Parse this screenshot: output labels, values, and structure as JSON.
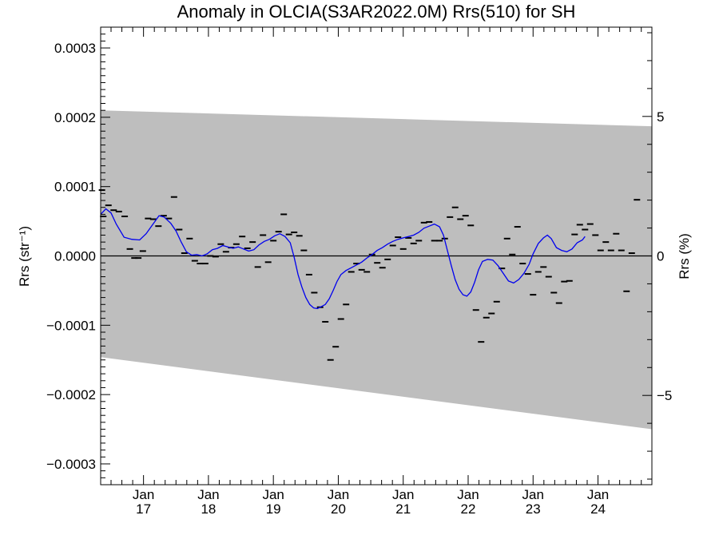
{
  "chart_data": {
    "type": "line",
    "title": "Anomaly in OLCIA(S3AR2022.0M) Rrs(510) for SH",
    "ylabel_left": "Rrs (str⁻¹)",
    "ylabel_right": "Rrs (%)",
    "x_tick_labels": [
      {
        "top": "Jan",
        "bottom": "17",
        "year": 2017
      },
      {
        "top": "Jan",
        "bottom": "18",
        "year": 2018
      },
      {
        "top": "Jan",
        "bottom": "19",
        "year": 2019
      },
      {
        "top": "Jan",
        "bottom": "20",
        "year": 2020
      },
      {
        "top": "Jan",
        "bottom": "21",
        "year": 2021
      },
      {
        "top": "Jan",
        "bottom": "22",
        "year": 2022
      },
      {
        "top": "Jan",
        "bottom": "23",
        "year": 2023
      },
      {
        "top": "Jan",
        "bottom": "24",
        "year": 2024
      }
    ],
    "xlim": [
      2016.34,
      2024.83
    ],
    "ylim": [
      -0.00033,
      0.00033
    ],
    "y_ticks_left": [
      {
        "value": 0.0003,
        "label": "0.0003"
      },
      {
        "value": 0.0002,
        "label": "0.0002"
      },
      {
        "value": 0.0001,
        "label": "0.0001"
      },
      {
        "value": 0.0,
        "label": "0.0000"
      },
      {
        "value": -0.0001,
        "label": "−0.0001"
      },
      {
        "value": -0.0002,
        "label": "−0.0002"
      },
      {
        "value": -0.0003,
        "label": "−0.0003"
      }
    ],
    "ylim_right": [
      -8.2,
      8.2
    ],
    "y_ticks_right": [
      {
        "value": 5,
        "label": "5"
      },
      {
        "value": 0,
        "label": "0"
      },
      {
        "value": -5,
        "label": "−5"
      }
    ],
    "zero_line": true,
    "uncertainty_band": {
      "color": "#bebebe",
      "x": [
        2016.34,
        2024.83
      ],
      "upper": [
        0.00021,
        0.000187
      ],
      "lower": [
        -0.000146,
        -0.00025
      ]
    },
    "series": [
      {
        "kind": "points",
        "color": "#000000",
        "points": [
          [
            2016.36,
            9.5e-05
          ],
          [
            2016.38,
            5.7e-05
          ],
          [
            2016.46,
            7.3e-05
          ],
          [
            2016.54,
            6.6e-05
          ],
          [
            2016.62,
            6.4e-05
          ],
          [
            2016.71,
            5.7e-05
          ],
          [
            2016.79,
            1e-05
          ],
          [
            2016.86,
            -3e-06
          ],
          [
            2016.92,
            -3e-06
          ],
          [
            2016.99,
            7e-06
          ],
          [
            2017.07,
            5.4e-05
          ],
          [
            2017.15,
            5.3e-05
          ],
          [
            2017.23,
            4.3e-05
          ],
          [
            2017.31,
            5.8e-05
          ],
          [
            2017.39,
            5.4e-05
          ],
          [
            2017.47,
            8.5e-05
          ],
          [
            2017.55,
            3.8e-05
          ],
          [
            2017.63,
            4e-06
          ],
          [
            2017.71,
            2.5e-05
          ],
          [
            2017.79,
            -7e-06
          ],
          [
            2017.87,
            -1.1e-05
          ],
          [
            2017.95,
            -1.1e-05
          ],
          [
            2018.03,
            0.0
          ],
          [
            2018.11,
            -1e-06
          ],
          [
            2018.19,
            1.7e-05
          ],
          [
            2018.27,
            6e-06
          ],
          [
            2018.35,
            1.2e-05
          ],
          [
            2018.43,
            1.7e-05
          ],
          [
            2018.52,
            2.8e-05
          ],
          [
            2018.6,
            1.1e-05
          ],
          [
            2018.68,
            2e-05
          ],
          [
            2018.76,
            -1.6e-05
          ],
          [
            2018.84,
            3e-05
          ],
          [
            2018.92,
            -9e-06
          ],
          [
            2019.0,
            2.2e-05
          ],
          [
            2019.08,
            3.5e-05
          ],
          [
            2019.16,
            6e-05
          ],
          [
            2019.24,
            3.1e-05
          ],
          [
            2019.32,
            3.4e-05
          ],
          [
            2019.4,
            2.9e-05
          ],
          [
            2019.47,
            8e-06
          ],
          [
            2019.55,
            -2.7e-05
          ],
          [
            2019.63,
            -5.3e-05
          ],
          [
            2019.72,
            -7.4e-05
          ],
          [
            2019.8,
            -9.5e-05
          ],
          [
            2019.88,
            -0.00015
          ],
          [
            2019.96,
            -0.000131
          ],
          [
            2020.04,
            -9.1e-05
          ],
          [
            2020.12,
            -7e-05
          ],
          [
            2020.2,
            -2.3e-05
          ],
          [
            2020.28,
            -1.1e-05
          ],
          [
            2020.36,
            -2e-05
          ],
          [
            2020.44,
            -2.3e-05
          ],
          [
            2020.52,
            2e-06
          ],
          [
            2020.6,
            -1e-05
          ],
          [
            2020.68,
            -1.7e-05
          ],
          [
            2020.76,
            -5e-06
          ],
          [
            2020.84,
            1.5e-05
          ],
          [
            2020.92,
            2.7e-05
          ],
          [
            2021.0,
            1e-05
          ],
          [
            2021.08,
            2.6e-05
          ],
          [
            2021.16,
            1.8e-05
          ],
          [
            2021.24,
            2.2e-05
          ],
          [
            2021.32,
            4.8e-05
          ],
          [
            2021.4,
            4.9e-05
          ],
          [
            2021.48,
            2.2e-05
          ],
          [
            2021.56,
            2.2e-05
          ],
          [
            2021.64,
            2.5e-05
          ],
          [
            2021.72,
            5.6e-05
          ],
          [
            2021.8,
            7e-05
          ],
          [
            2021.88,
            5.3e-05
          ],
          [
            2021.96,
            5.8e-05
          ],
          [
            2022.04,
            4.4e-05
          ],
          [
            2022.12,
            -7.8e-05
          ],
          [
            2022.2,
            -0.000124
          ],
          [
            2022.28,
            -8.9e-05
          ],
          [
            2022.36,
            -8.3e-05
          ],
          [
            2022.44,
            -6.6e-05
          ],
          [
            2022.52,
            -1.8e-05
          ],
          [
            2022.6,
            2.5e-05
          ],
          [
            2022.68,
            2e-06
          ],
          [
            2022.76,
            4.2e-05
          ],
          [
            2022.84,
            -1.1e-05
          ],
          [
            2022.92,
            -2.6e-05
          ],
          [
            2023.0,
            -5.6e-05
          ],
          [
            2023.08,
            -2.3e-05
          ],
          [
            2023.16,
            -1.6e-05
          ],
          [
            2023.24,
            -3e-05
          ],
          [
            2023.32,
            -5.3e-05
          ],
          [
            2023.4,
            -6.8e-05
          ],
          [
            2023.48,
            -3.7e-05
          ],
          [
            2023.56,
            -3.6e-05
          ],
          [
            2023.64,
            3.1e-05
          ],
          [
            2023.72,
            4.5e-05
          ],
          [
            2023.8,
            3.8e-05
          ],
          [
            2023.88,
            4.6e-05
          ],
          [
            2023.96,
            3e-05
          ],
          [
            2024.04,
            8e-06
          ],
          [
            2024.12,
            2e-05
          ],
          [
            2024.2,
            8e-06
          ],
          [
            2024.28,
            3.2e-05
          ],
          [
            2024.36,
            8e-06
          ],
          [
            2024.44,
            -5.1e-05
          ],
          [
            2024.52,
            4e-06
          ],
          [
            2024.6,
            8.1e-05
          ]
        ]
      },
      {
        "kind": "line",
        "color": "#0000ee",
        "points": [
          [
            2016.34,
            6e-05
          ],
          [
            2016.42,
            6.8e-05
          ],
          [
            2016.5,
            6.2e-05
          ],
          [
            2016.58,
            4.6e-05
          ],
          [
            2016.7,
            2.7e-05
          ],
          [
            2016.82,
            2.4e-05
          ],
          [
            2016.94,
            2.3e-05
          ],
          [
            2017.04,
            3.2e-05
          ],
          [
            2017.14,
            4.5e-05
          ],
          [
            2017.24,
            5.8e-05
          ],
          [
            2017.32,
            5.6e-05
          ],
          [
            2017.42,
            4.7e-05
          ],
          [
            2017.5,
            3.6e-05
          ],
          [
            2017.58,
            2e-05
          ],
          [
            2017.66,
            6e-06
          ],
          [
            2017.74,
            1e-06
          ],
          [
            2017.82,
            2e-06
          ],
          [
            2017.9,
            0.0
          ],
          [
            2017.98,
            3e-06
          ],
          [
            2018.06,
            9e-06
          ],
          [
            2018.14,
            1.1e-05
          ],
          [
            2018.22,
            1.5e-05
          ],
          [
            2018.3,
            1.3e-05
          ],
          [
            2018.38,
            1.1e-05
          ],
          [
            2018.46,
            1.3e-05
          ],
          [
            2018.54,
            1e-05
          ],
          [
            2018.62,
            7e-06
          ],
          [
            2018.7,
            9e-06
          ],
          [
            2018.78,
            1.6e-05
          ],
          [
            2018.86,
            2.1e-05
          ],
          [
            2018.94,
            2.4e-05
          ],
          [
            2019.02,
            2.9e-05
          ],
          [
            2019.1,
            3.2e-05
          ],
          [
            2019.18,
            2.8e-05
          ],
          [
            2019.26,
            1.9e-05
          ],
          [
            2019.32,
            -2e-06
          ],
          [
            2019.38,
            -2.7e-05
          ],
          [
            2019.44,
            -4.5e-05
          ],
          [
            2019.5,
            -6e-05
          ],
          [
            2019.56,
            -7e-05
          ],
          [
            2019.62,
            -7.5e-05
          ],
          [
            2019.68,
            -7.6e-05
          ],
          [
            2019.74,
            -7.3e-05
          ],
          [
            2019.8,
            -7e-05
          ],
          [
            2019.86,
            -6.2e-05
          ],
          [
            2019.92,
            -5e-05
          ],
          [
            2019.98,
            -3.7e-05
          ],
          [
            2020.04,
            -2.7e-05
          ],
          [
            2020.12,
            -2.1e-05
          ],
          [
            2020.2,
            -1.7e-05
          ],
          [
            2020.28,
            -1.3e-05
          ],
          [
            2020.36,
            -9e-06
          ],
          [
            2020.44,
            -3e-06
          ],
          [
            2020.52,
            2e-06
          ],
          [
            2020.6,
            8e-06
          ],
          [
            2020.68,
            1.2e-05
          ],
          [
            2020.76,
            1.7e-05
          ],
          [
            2020.84,
            2.1e-05
          ],
          [
            2020.92,
            2.4e-05
          ],
          [
            2021.0,
            2.6e-05
          ],
          [
            2021.08,
            2.8e-05
          ],
          [
            2021.16,
            3e-05
          ],
          [
            2021.24,
            3.4e-05
          ],
          [
            2021.32,
            4e-05
          ],
          [
            2021.4,
            4.3e-05
          ],
          [
            2021.48,
            4.6e-05
          ],
          [
            2021.56,
            4.2e-05
          ],
          [
            2021.62,
            3e-05
          ],
          [
            2021.68,
            8e-06
          ],
          [
            2021.74,
            -1.4e-05
          ],
          [
            2021.8,
            -3.4e-05
          ],
          [
            2021.86,
            -4.8e-05
          ],
          [
            2021.92,
            -5.6e-05
          ],
          [
            2021.98,
            -5.8e-05
          ],
          [
            2022.04,
            -5.2e-05
          ],
          [
            2022.1,
            -3.8e-05
          ],
          [
            2022.16,
            -2e-05
          ],
          [
            2022.22,
            -8e-06
          ],
          [
            2022.3,
            -5e-06
          ],
          [
            2022.38,
            -6e-06
          ],
          [
            2022.46,
            -1.4e-05
          ],
          [
            2022.54,
            -2.5e-05
          ],
          [
            2022.62,
            -3.6e-05
          ],
          [
            2022.7,
            -3.9e-05
          ],
          [
            2022.78,
            -3.4e-05
          ],
          [
            2022.86,
            -2.5e-05
          ],
          [
            2022.94,
            -1.2e-05
          ],
          [
            2023.0,
            3e-06
          ],
          [
            2023.08,
            1.8e-05
          ],
          [
            2023.16,
            2.6e-05
          ],
          [
            2023.22,
            3e-05
          ],
          [
            2023.28,
            2.5e-05
          ],
          [
            2023.36,
            1.2e-05
          ],
          [
            2023.44,
            8e-06
          ],
          [
            2023.52,
            6e-06
          ],
          [
            2023.6,
            1e-05
          ],
          [
            2023.68,
            1.9e-05
          ],
          [
            2023.76,
            2.3e-05
          ],
          [
            2023.8,
            2.8e-05
          ]
        ]
      }
    ]
  }
}
